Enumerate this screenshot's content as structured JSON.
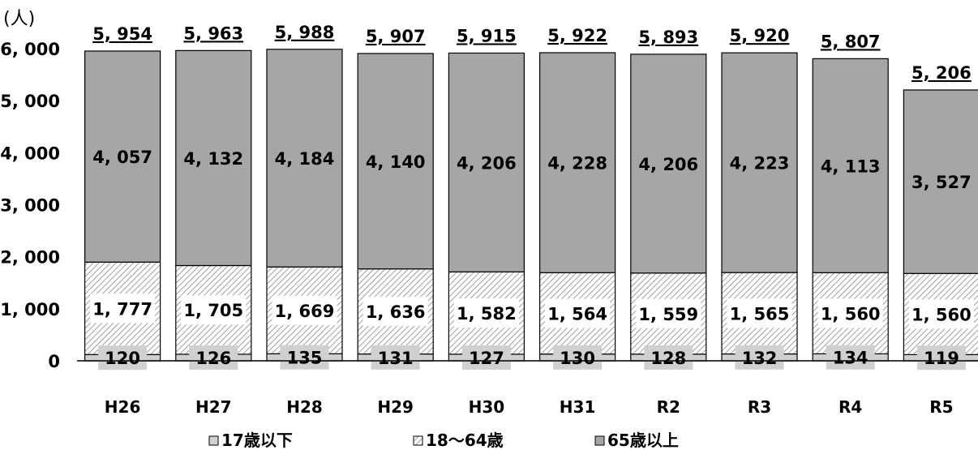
{
  "chart_data": {
    "type": "bar",
    "stacked": true,
    "unit_label": "(人)",
    "categories": [
      "H26",
      "H27",
      "H28",
      "H29",
      "H30",
      "H31",
      "R2",
      "R3",
      "R4",
      "R5"
    ],
    "series": [
      {
        "name": "17歳以下",
        "values": [
          120,
          126,
          135,
          131,
          127,
          130,
          128,
          132,
          134,
          119
        ],
        "color": "#d0d0d0"
      },
      {
        "name": "18～64歳",
        "values": [
          1777,
          1705,
          1669,
          1636,
          1582,
          1564,
          1559,
          1565,
          1560,
          1560
        ],
        "color": "#ffffff",
        "pattern": "diagonal-hatch"
      },
      {
        "name": "65歳以上",
        "values": [
          4057,
          4132,
          4184,
          4140,
          4206,
          4228,
          4206,
          4223,
          4113,
          3527
        ],
        "color": "#a6a6a6"
      }
    ],
    "totals": [
      5954,
      5963,
      5988,
      5907,
      5915,
      5922,
      5893,
      5920,
      5807,
      5206
    ],
    "ylim": [
      0,
      6000
    ],
    "yticks": [
      0,
      1000,
      2000,
      3000,
      4000,
      5000,
      6000
    ],
    "grid": false,
    "legend_position": "bottom"
  }
}
